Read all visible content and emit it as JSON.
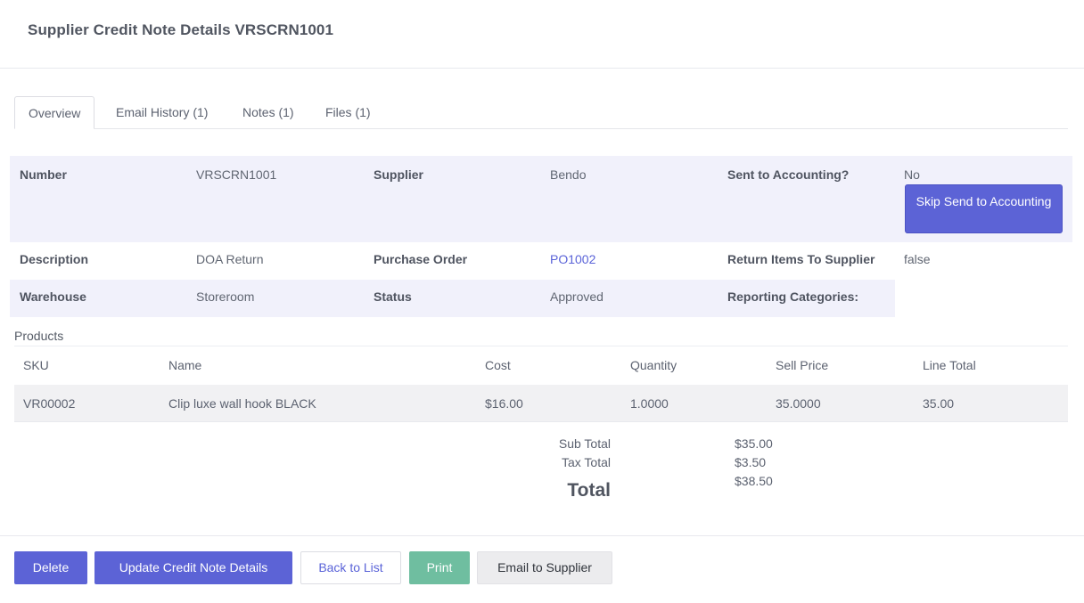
{
  "header": {
    "title": "Supplier Credit Note Details VRSCRN1001"
  },
  "tabs": [
    {
      "label": "Overview"
    },
    {
      "label": "Email History (1)"
    },
    {
      "label": "Notes (1)"
    },
    {
      "label": "Files (1)"
    }
  ],
  "details": {
    "number_label": "Number",
    "number_value": "VRSCRN1001",
    "supplier_label": "Supplier",
    "supplier_value": "Bendo",
    "sent_label": "Sent to Accounting?",
    "sent_value": "No",
    "skip_button": "Skip Send to Accounting",
    "description_label": "Description",
    "description_value": "DOA Return",
    "po_label": "Purchase Order",
    "po_value": "PO1002",
    "return_label": "Return Items To Supplier",
    "return_value": "false",
    "warehouse_label": "Warehouse",
    "warehouse_value": "Storeroom",
    "status_label": "Status",
    "status_value": "Approved",
    "reporting_label": "Reporting Categories:"
  },
  "products": {
    "title": "Products",
    "columns": [
      "SKU",
      "Name",
      "Cost",
      "Quantity",
      "Sell Price",
      "Line Total"
    ],
    "rows": [
      [
        "VR00002",
        "Clip luxe wall hook BLACK",
        "$16.00",
        "1.0000",
        "35.0000",
        "35.00"
      ]
    ]
  },
  "totals": {
    "sub_total_label": "Sub Total",
    "sub_total_value": "$35.00",
    "tax_total_label": "Tax Total",
    "tax_total_value": "$3.50",
    "total_label": "Total",
    "total_value": "$38.50"
  },
  "footer": {
    "delete": "Delete",
    "update": "Update Credit Note Details",
    "back": "Back to List",
    "print": "Print",
    "email": "Email to Supplier"
  }
}
